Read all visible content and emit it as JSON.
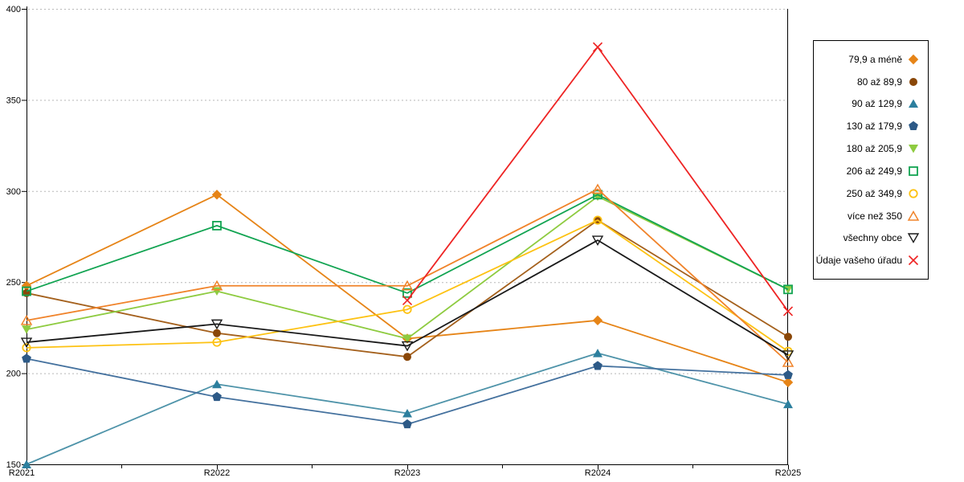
{
  "chart_data": {
    "type": "line",
    "title": "",
    "categories": [
      "R2021",
      "R2022",
      "R2023",
      "R2024",
      "R2025"
    ],
    "ylim": [
      150,
      400
    ],
    "yticks": [
      150,
      200,
      250,
      300,
      350,
      400
    ],
    "grid": "horizontal dashed",
    "grid_color": "#b8b8b8",
    "axis_color": "#000000",
    "legend_position": "right",
    "series": [
      {
        "name": "79,9 a méně",
        "marker": "diamond-filled",
        "color": "#e68417",
        "values": [
          248,
          298,
          219,
          229,
          195
        ]
      },
      {
        "name": "80 až 89,9",
        "marker": "circle-filled",
        "color": "#8a4708",
        "line_color": "#a4601c",
        "values": [
          244,
          222,
          209,
          284,
          220
        ]
      },
      {
        "name": "90 až 129,9",
        "marker": "triangle-up-filled",
        "color": "#2c7f9e",
        "line_color": "#4e93a9",
        "values": [
          150,
          194,
          178,
          211,
          183
        ]
      },
      {
        "name": "130 až 179,9",
        "marker": "pentagon-filled",
        "color": "#2d5a87",
        "line_color": "#44719e",
        "values": [
          208,
          187,
          172,
          204,
          199
        ]
      },
      {
        "name": "180 až 205,9",
        "marker": "triangle-down-filled",
        "color": "#8ecb40",
        "values": [
          224,
          245,
          219,
          297,
          246
        ]
      },
      {
        "name": "206 až 249,9",
        "marker": "square-hollow",
        "color": "#12a452",
        "values": [
          245,
          281,
          244,
          298,
          246
        ]
      },
      {
        "name": "250 až 349,9",
        "marker": "circle-hollow",
        "color": "#fdc213",
        "values": [
          214,
          217,
          235,
          284,
          212
        ]
      },
      {
        "name": "více než 350",
        "marker": "triangle-up-hollow",
        "color": "#f0832a",
        "values": [
          229,
          248,
          248,
          301,
          206
        ]
      },
      {
        "name": "všechny obce",
        "marker": "triangle-down-hollow",
        "color": "#1a1a1a",
        "values": [
          217,
          227,
          215,
          273,
          210
        ]
      },
      {
        "name": "Údaje vašeho úřadu",
        "marker": "x-cross",
        "color": "#ee2424",
        "values": [
          null,
          null,
          240,
          379,
          234
        ]
      }
    ]
  }
}
